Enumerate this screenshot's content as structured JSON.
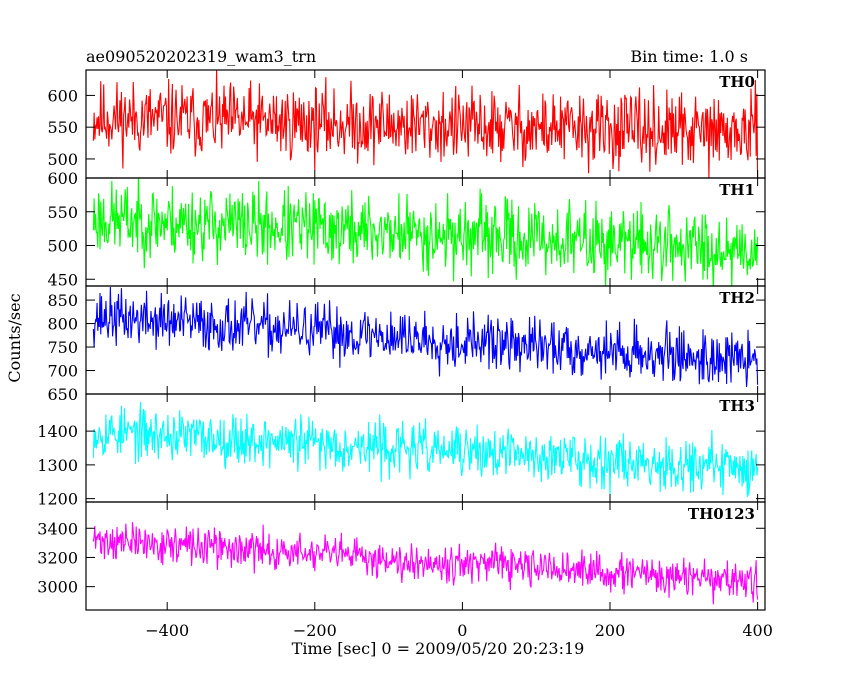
{
  "chart_data": {
    "type": "line",
    "title": "ae090520202319_wam3_trn",
    "bin_time_label": "Bin time: 1.0 s",
    "xlabel": "Time [sec] 0 = 2009/05/20 20:23:19",
    "ylabel": "Counts/sec",
    "xlim": [
      -510,
      410
    ],
    "x_ticks": [
      -400,
      -200,
      0,
      200,
      400
    ],
    "x_tick_labels": [
      "−400",
      "−200",
      "0",
      "200",
      "400"
    ],
    "panels": [
      {
        "name": "TH0",
        "color": "#ff0000",
        "ylim": [
          470,
          640
        ],
        "y_ticks": [
          500,
          550,
          600
        ],
        "y_tick_labels": [
          "500",
          "550",
          "600"
        ],
        "trend_start": 565,
        "trend_end": 540,
        "noise": 32,
        "seed": 11
      },
      {
        "name": "TH1",
        "color": "#00ff00",
        "ylim": [
          440,
          600
        ],
        "y_ticks": [
          450,
          500,
          550,
          600
        ],
        "y_tick_labels": [
          "450",
          "500",
          "550",
          "600"
        ],
        "trend_start": 540,
        "trend_end": 495,
        "noise": 30,
        "seed": 23
      },
      {
        "name": "TH2",
        "color": "#0000ff",
        "ylim": [
          650,
          880
        ],
        "y_ticks": [
          650,
          700,
          750,
          800,
          850
        ],
        "y_tick_labels": [
          "650",
          "700",
          "750",
          "800",
          "850"
        ],
        "trend_start": 815,
        "trend_end": 720,
        "noise": 32,
        "seed": 37
      },
      {
        "name": "TH3",
        "color": "#00ffff",
        "ylim": [
          1190,
          1510
        ],
        "y_ticks": [
          1200,
          1300,
          1400
        ],
        "y_tick_labels": [
          "1200",
          "1300",
          "1400"
        ],
        "trend_start": 1400,
        "trend_end": 1290,
        "noise": 42,
        "seed": 53
      },
      {
        "name": "TH0123",
        "color": "#ff00ff",
        "ylim": [
          2840,
          3580
        ],
        "y_ticks": [
          3000,
          3200,
          3400
        ],
        "y_tick_labels": [
          "3000",
          "3200",
          "3400"
        ],
        "trend_start": 3320,
        "trend_end": 3030,
        "noise": 70,
        "seed": 71
      }
    ]
  }
}
